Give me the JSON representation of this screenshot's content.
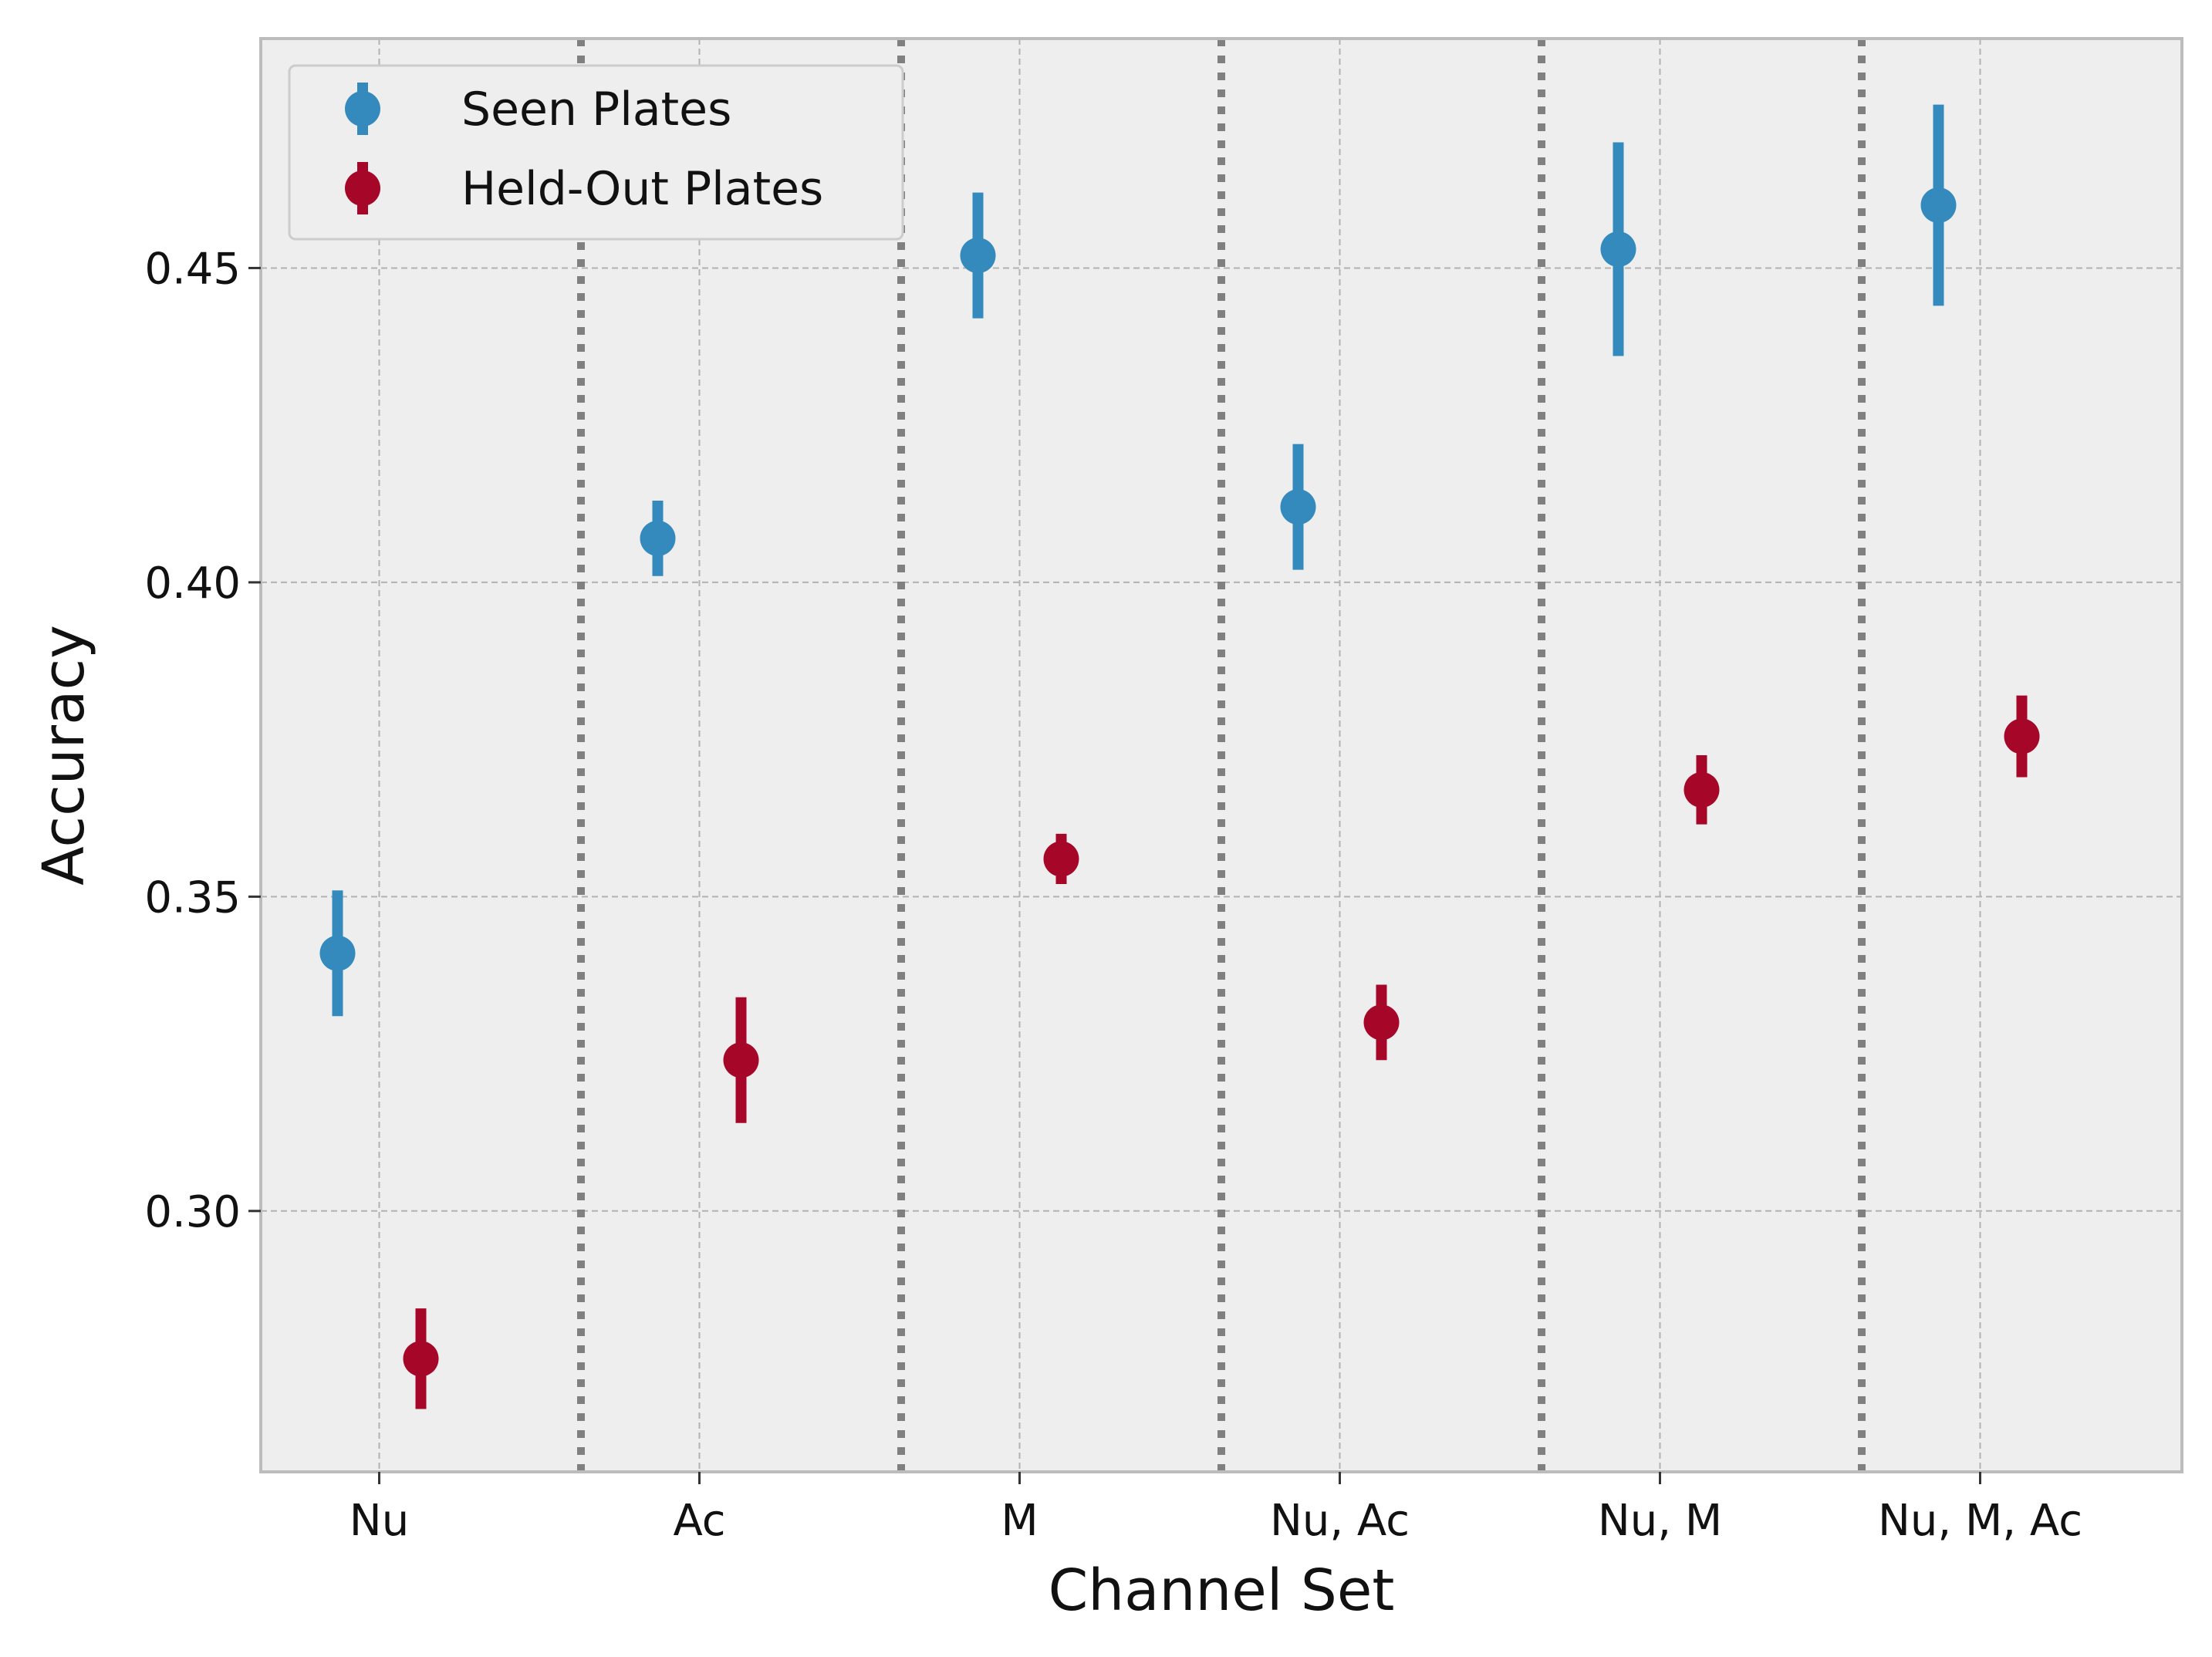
{
  "chart_data": {
    "type": "scatter",
    "title": "",
    "xlabel": "Channel Set",
    "ylabel": "Accuracy",
    "categories": [
      "Nu",
      "Ac",
      "M",
      "Nu, Ac",
      "Nu, M",
      "Nu, M, Ac"
    ],
    "ylim": [
      0.2585,
      0.4865
    ],
    "yticks": [
      0.3,
      0.35,
      0.4,
      0.45
    ],
    "ytick_labels": [
      "0.30",
      "0.35",
      "0.40",
      "0.45"
    ],
    "grid": true,
    "legend_position": "top-left",
    "series": [
      {
        "name": "Seen Plates",
        "color": "#348ABD",
        "values": [
          0.341,
          0.407,
          0.452,
          0.412,
          0.453,
          0.46
        ],
        "errors": [
          0.01,
          0.006,
          0.01,
          0.01,
          0.017,
          0.016
        ]
      },
      {
        "name": "Held-Out Plates",
        "color": "#A60628",
        "values": [
          0.2765,
          0.324,
          0.356,
          0.33,
          0.367,
          0.3755
        ],
        "errors": [
          0.008,
          0.01,
          0.004,
          0.006,
          0.0055,
          0.0065
        ]
      }
    ],
    "separator_color": "#808080",
    "background_color": "#EEEEEE"
  }
}
